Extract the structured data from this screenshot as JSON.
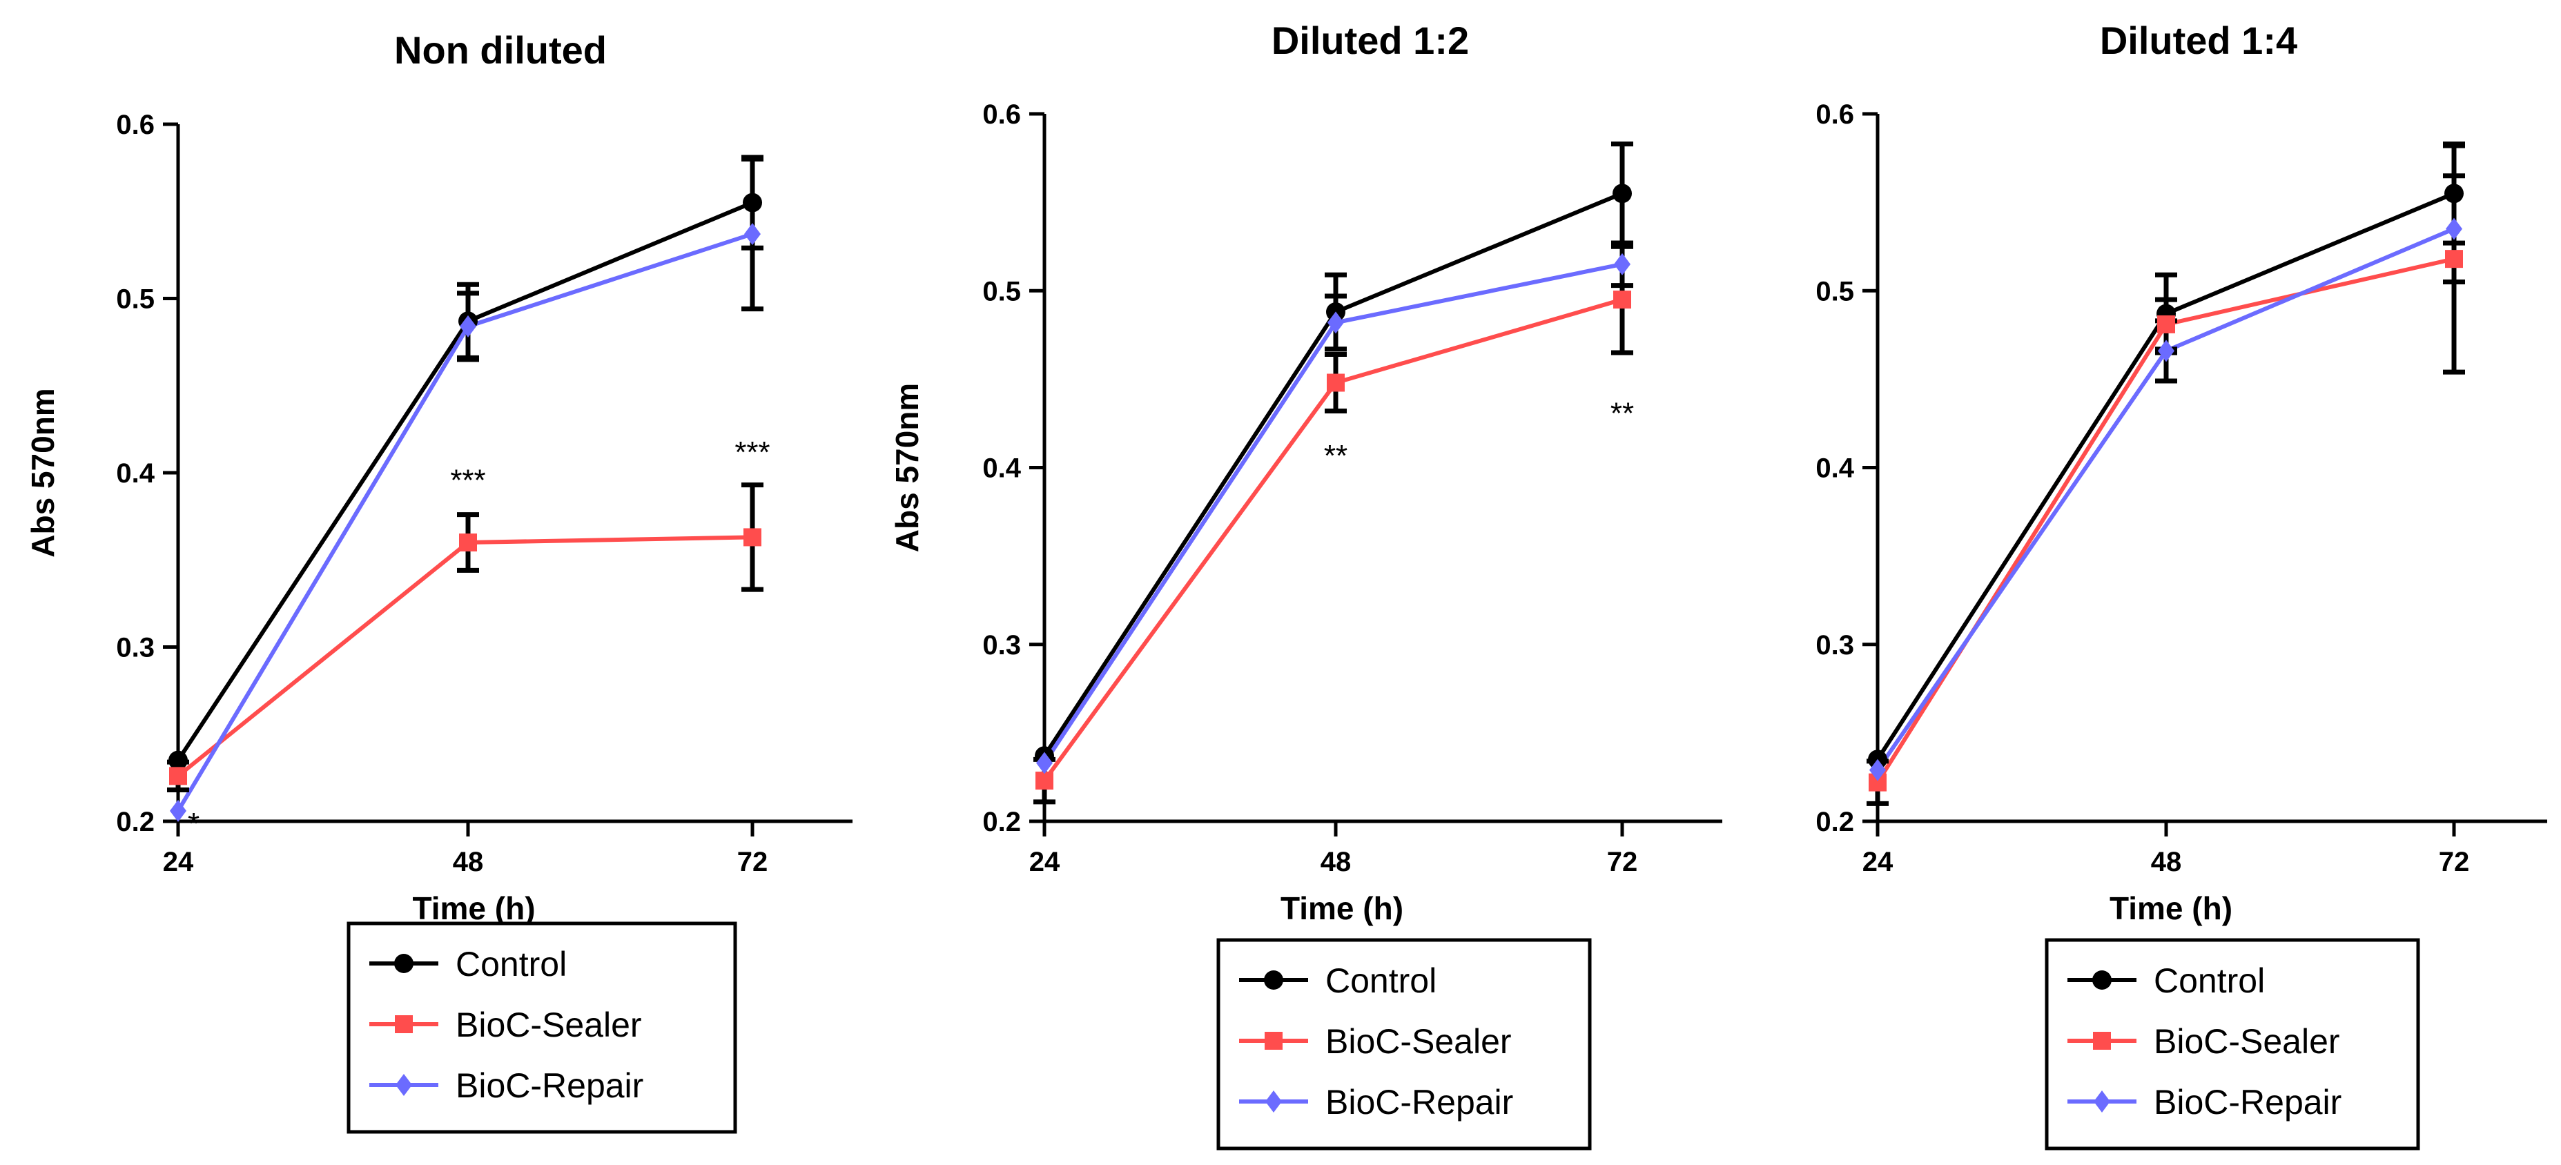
{
  "chart_data": [
    {
      "type": "line",
      "title": "Non diluted",
      "xlabel": "Time (h)",
      "ylabel": "Abs 570nm",
      "categories": [
        "24",
        "48",
        "72"
      ],
      "ylim": [
        0.2,
        0.6
      ],
      "yticks": [
        "0.2",
        "0.3",
        "0.4",
        "0.5",
        "0.6"
      ],
      "series": [
        {
          "name": "Control",
          "color": "#000000",
          "marker": "circle",
          "values": [
            0.235,
            0.487,
            0.555
          ],
          "errors": [
            0.0,
            0.021,
            0.026
          ]
        },
        {
          "name": "BioC-Sealer",
          "color": "#ff4d4d",
          "marker": "square",
          "values": [
            0.226,
            0.36,
            0.363
          ],
          "errors": [
            0.008,
            0.016,
            0.03
          ]
        },
        {
          "name": "BioC-Repair",
          "color": "#6b6bff",
          "marker": "diamond",
          "values": [
            0.206,
            0.484,
            0.537
          ],
          "errors": [
            0.0,
            0.019,
            0.043
          ]
        }
      ],
      "annotations": [
        {
          "text": "*",
          "category": "24",
          "y": 0.2
        },
        {
          "text": "***",
          "category": "48",
          "y": 0.397
        },
        {
          "text": "***",
          "category": "72",
          "y": 0.413
        }
      ],
      "legend": [
        "Control",
        "BioC-Sealer",
        "BioC-Repair"
      ],
      "legend_position": "below"
    },
    {
      "type": "line",
      "title": "Diluted 1:2",
      "xlabel": "Time (h)",
      "ylabel": "Abs 570nm",
      "categories": [
        "24",
        "48",
        "72"
      ],
      "ylim": [
        0.2,
        0.6
      ],
      "yticks": [
        "0.2",
        "0.3",
        "0.4",
        "0.5",
        "0.6"
      ],
      "series": [
        {
          "name": "Control",
          "color": "#000000",
          "marker": "circle",
          "values": [
            0.237,
            0.488,
            0.555
          ],
          "errors": [
            0.0,
            0.021,
            0.028
          ]
        },
        {
          "name": "BioC-Sealer",
          "color": "#ff4d4d",
          "marker": "square",
          "values": [
            0.223,
            0.448,
            0.495
          ],
          "errors": [
            0.012,
            0.016,
            0.03
          ]
        },
        {
          "name": "BioC-Repair",
          "color": "#6b6bff",
          "marker": "diamond",
          "values": [
            0.233,
            0.482,
            0.515
          ],
          "errors": [
            0.0,
            0.015,
            0.012
          ]
        }
      ],
      "annotations": [
        {
          "text": "**",
          "category": "48",
          "y": 0.408
        },
        {
          "text": "**",
          "category": "72",
          "y": 0.432
        }
      ],
      "legend": [
        "Control",
        "BioC-Sealer",
        "BioC-Repair"
      ],
      "legend_position": "below"
    },
    {
      "type": "line",
      "title": "Diluted 1:4",
      "xlabel": "Time (h)",
      "ylabel": "",
      "categories": [
        "24",
        "48",
        "72"
      ],
      "ylim": [
        0.2,
        0.6
      ],
      "yticks": [
        "0.2",
        "0.3",
        "0.4",
        "0.5",
        "0.6"
      ],
      "series": [
        {
          "name": "Control",
          "color": "#000000",
          "marker": "circle",
          "values": [
            0.235,
            0.487,
            0.555
          ],
          "errors": [
            0.0,
            0.022,
            0.028
          ]
        },
        {
          "name": "BioC-Sealer",
          "color": "#ff4d4d",
          "marker": "square",
          "values": [
            0.222,
            0.481,
            0.518
          ],
          "errors": [
            0.012,
            0.014,
            0.064
          ]
        },
        {
          "name": "BioC-Repair",
          "color": "#6b6bff",
          "marker": "diamond",
          "values": [
            0.229,
            0.466,
            0.535
          ],
          "errors": [
            0.0,
            0.017,
            0.03
          ]
        }
      ],
      "annotations": [],
      "legend": [
        "Control",
        "BioC-Sealer",
        "BioC-Repair"
      ],
      "legend_position": "below"
    }
  ]
}
